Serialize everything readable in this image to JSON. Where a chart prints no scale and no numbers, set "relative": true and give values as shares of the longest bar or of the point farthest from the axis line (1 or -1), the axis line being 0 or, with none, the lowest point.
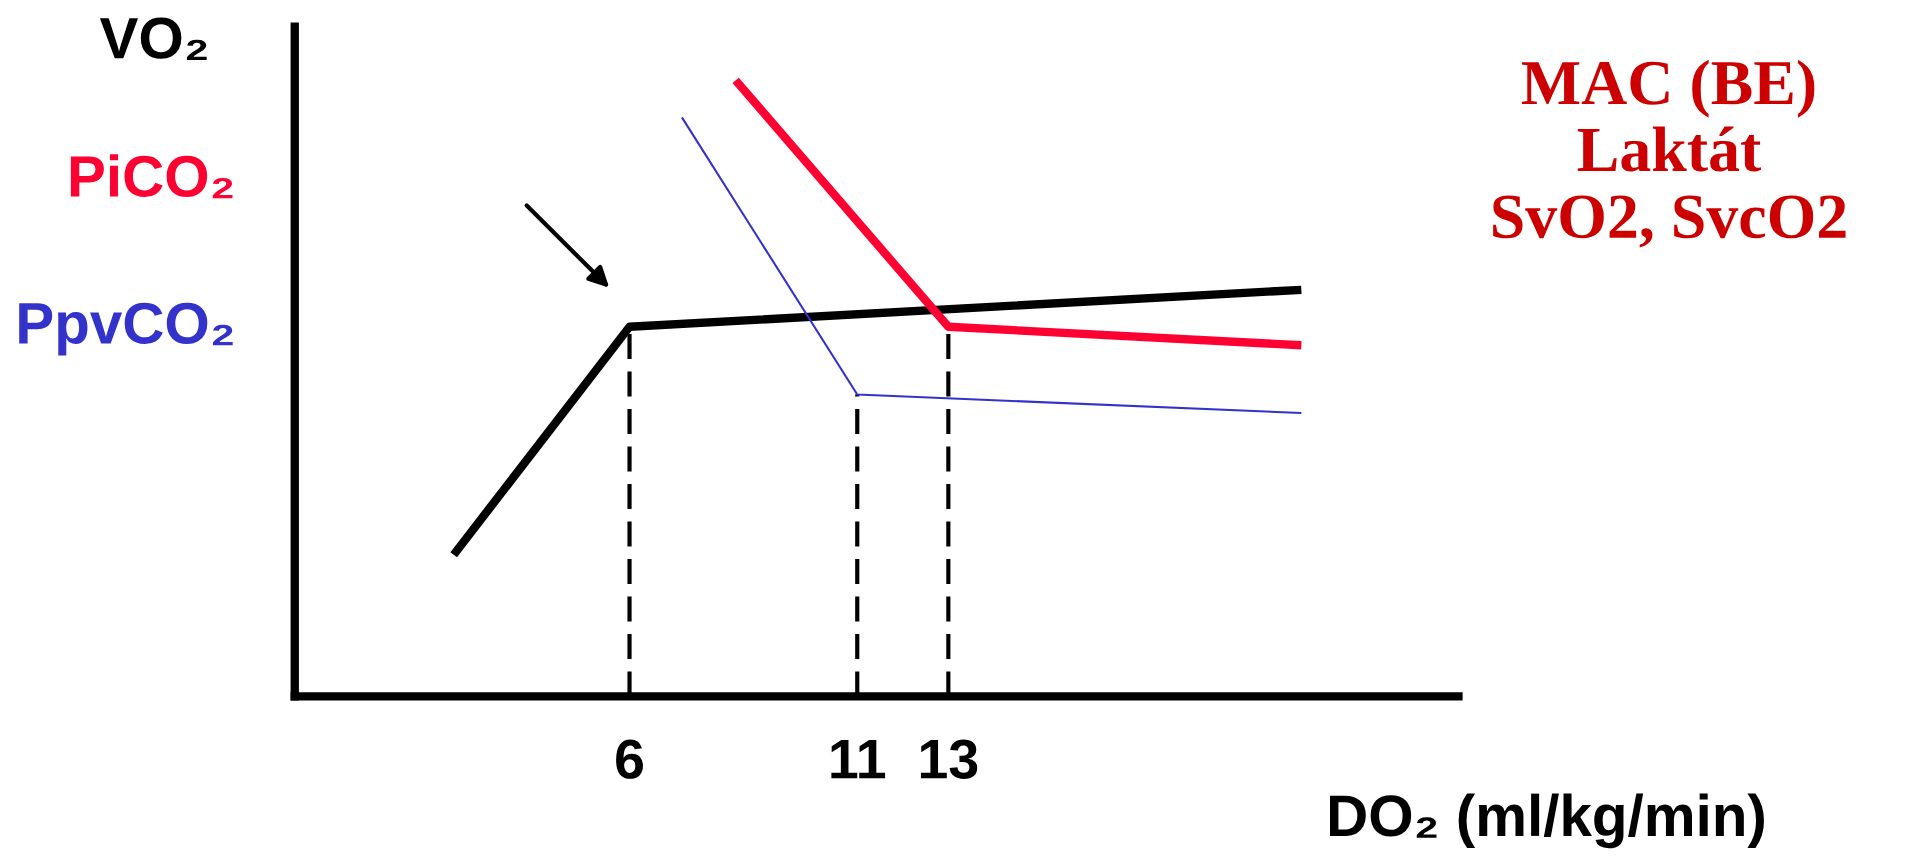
{
  "chart_data": {
    "type": "line",
    "relative": true,
    "xlabel": "DO₂ (ml/kg/min)",
    "xlim": [
      -1.35,
      24.2
    ],
    "xticks": [
      6,
      11,
      13
    ],
    "series": [
      {
        "name": "VO₂",
        "color": "#000000",
        "x": [
          2.14,
          6,
          20.75
        ],
        "values": [
          0.23,
          0.6,
          0.66
        ]
      },
      {
        "name": "PiCO₂",
        "color": "#ff0033",
        "x": [
          8.33,
          13,
          20.75
        ],
        "values": [
          1,
          0.6,
          0.57
        ]
      },
      {
        "name": "PpvCO₂",
        "color": "#3333cc",
        "x": [
          7.15,
          11,
          20.75
        ],
        "values": [
          0.94,
          0.49,
          0.46
        ]
      }
    ],
    "ref_lines": [
      {
        "axis": "x",
        "value": 6,
        "line_style": "dashed",
        "color": "#000000"
      },
      {
        "axis": "x",
        "value": 11,
        "line_style": "dashed",
        "color": "#000000"
      },
      {
        "axis": "x",
        "value": 13,
        "line_style": "dashed",
        "color": "#000000"
      }
    ],
    "annotations": [
      "MAC (BE)\nLaktát\nSvO2, SvcO2"
    ],
    "grid": false,
    "marker": "none",
    "line_style": "solid"
  }
}
